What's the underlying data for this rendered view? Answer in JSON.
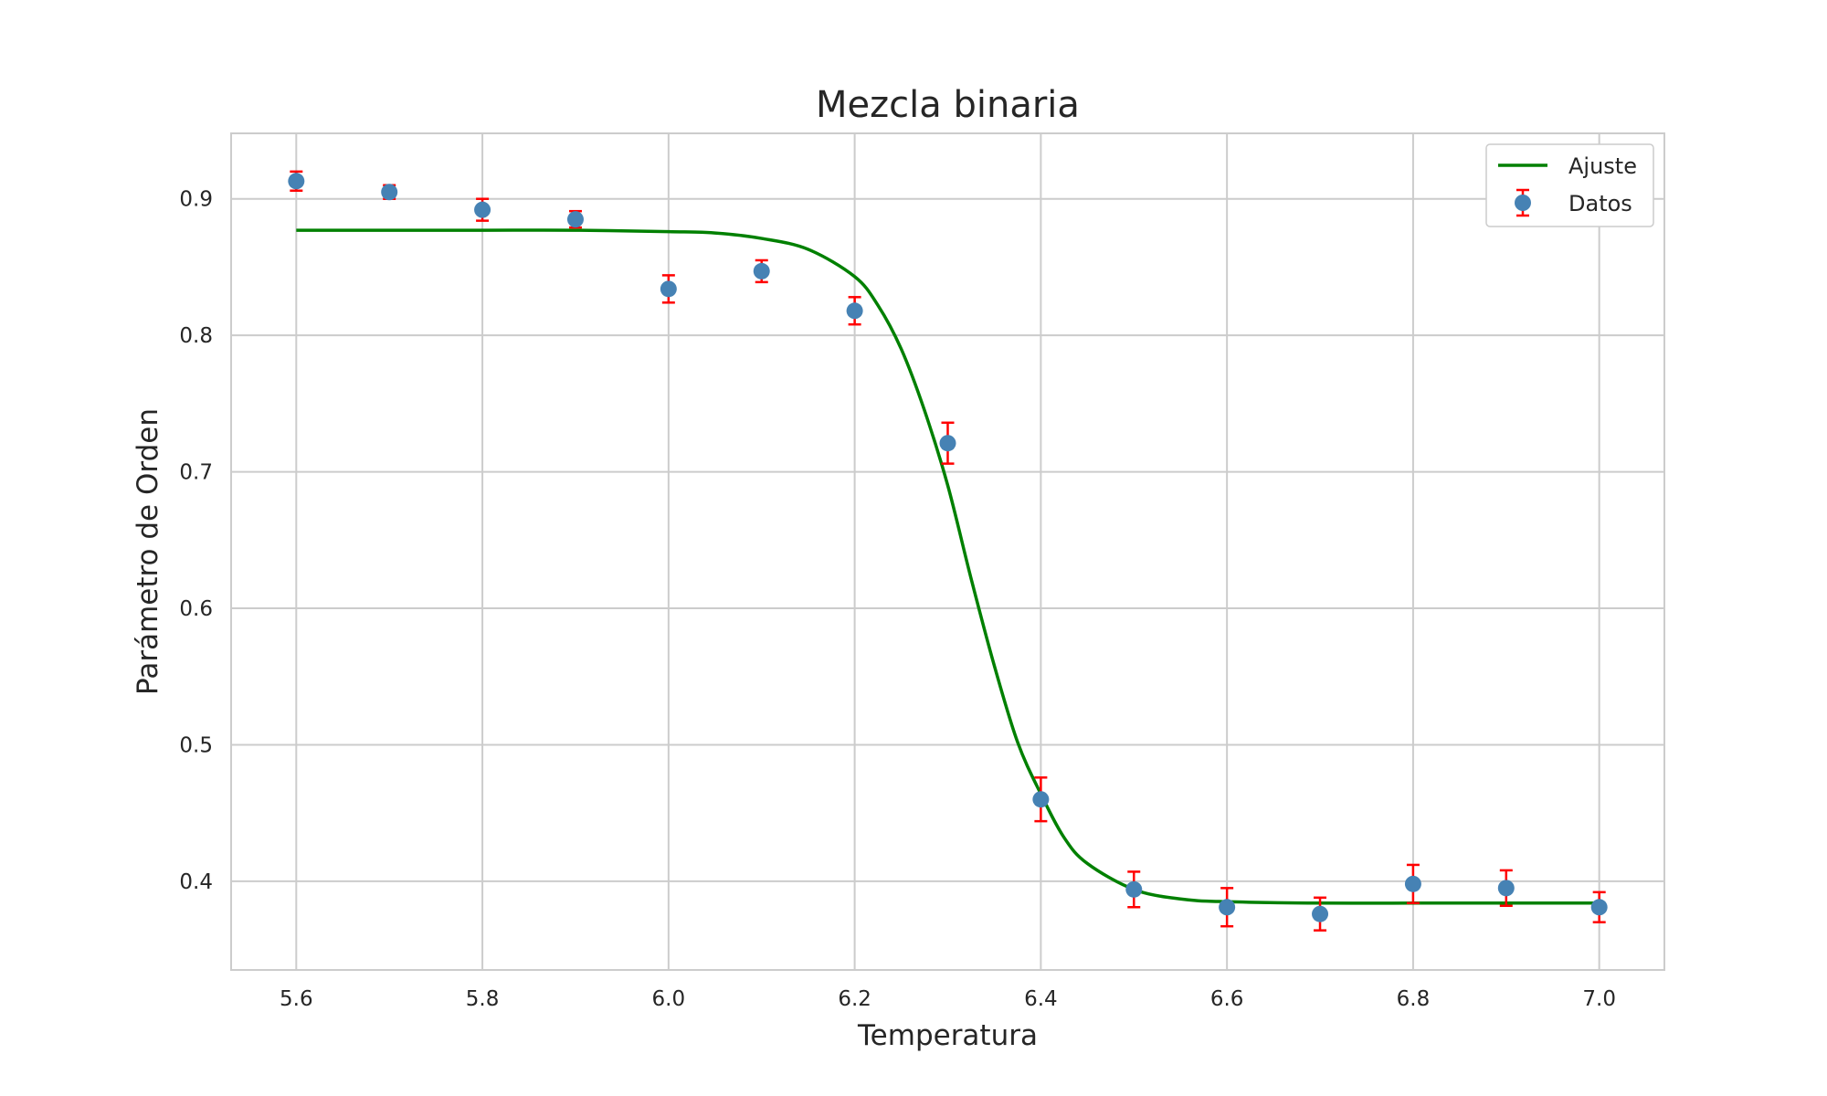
{
  "chart_data": {
    "type": "scatter",
    "title": "Mezcla binaria",
    "xlabel": "Temperatura",
    "ylabel": "Parámetro de Orden",
    "xlim": [
      5.53,
      7.07
    ],
    "ylim": [
      0.335,
      0.948
    ],
    "xticks": [
      "5.6",
      "5.8",
      "6.0",
      "6.2",
      "6.4",
      "6.6",
      "6.8",
      "7.0"
    ],
    "yticks": [
      "0.4",
      "0.5",
      "0.6",
      "0.7",
      "0.8",
      "0.9"
    ],
    "grid": true,
    "legend_position": "top-right",
    "series": [
      {
        "name": "Ajuste",
        "kind": "line",
        "color": "#008000",
        "x": [
          5.6,
          5.7,
          5.8,
          5.9,
          6.0,
          6.05,
          6.1,
          6.15,
          6.2,
          6.225,
          6.25,
          6.275,
          6.3,
          6.325,
          6.35,
          6.375,
          6.4,
          6.425,
          6.45,
          6.5,
          6.55,
          6.6,
          6.7,
          6.8,
          6.9,
          7.0
        ],
        "y": [
          0.877,
          0.877,
          0.877,
          0.877,
          0.876,
          0.875,
          0.871,
          0.863,
          0.843,
          0.822,
          0.79,
          0.745,
          0.69,
          0.622,
          0.558,
          0.502,
          0.464,
          0.432,
          0.413,
          0.394,
          0.387,
          0.385,
          0.384,
          0.384,
          0.384,
          0.384
        ]
      },
      {
        "name": "Datos",
        "kind": "errorbar",
        "marker_color": "#4682b4",
        "error_color": "#ff0000",
        "x": [
          5.6,
          5.7,
          5.8,
          5.9,
          6.0,
          6.1,
          6.2,
          6.3,
          6.4,
          6.5,
          6.6,
          6.7,
          6.8,
          6.9,
          7.0
        ],
        "y": [
          0.913,
          0.905,
          0.892,
          0.885,
          0.834,
          0.847,
          0.818,
          0.721,
          0.46,
          0.394,
          0.381,
          0.376,
          0.398,
          0.395,
          0.381
        ],
        "yerr": [
          0.007,
          0.005,
          0.008,
          0.006,
          0.01,
          0.008,
          0.01,
          0.015,
          0.016,
          0.013,
          0.014,
          0.012,
          0.014,
          0.013,
          0.011
        ]
      }
    ]
  }
}
